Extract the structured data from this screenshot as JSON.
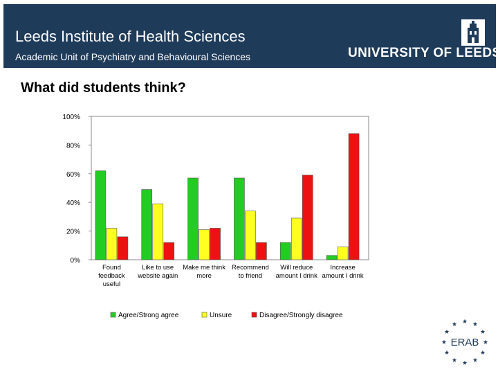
{
  "header": {
    "title": "Leeds Institute of Health Sciences",
    "subtitle": "Academic Unit of Psychiatry and Behavioural Sciences",
    "logo_text": "UNIVERSITY OF LEEDS"
  },
  "slide": {
    "heading": "What did students think?"
  },
  "footer_logo": {
    "text": "ERAB",
    "icon": "star-ring-logo"
  },
  "chart_data": {
    "type": "bar",
    "categories": [
      [
        "Found",
        "feedback",
        "useful"
      ],
      [
        "Like to use",
        "website again"
      ],
      [
        "Make me think",
        "more"
      ],
      [
        "Recommend",
        "to friend"
      ],
      [
        "Will reduce",
        "amount I drink"
      ],
      [
        "Increase",
        "amount I drink"
      ]
    ],
    "series": [
      {
        "name": "Agree/Strong agree",
        "color": "#22cc22",
        "values": [
          62,
          49,
          57,
          57,
          12,
          3
        ]
      },
      {
        "name": "Unsure",
        "color": "#ffff22",
        "values": [
          22,
          39,
          21,
          34,
          29,
          9
        ]
      },
      {
        "name": "Disagree/Strongly disagree",
        "color": "#ee1111",
        "values": [
          16,
          12,
          22,
          12,
          59,
          88
        ]
      }
    ],
    "ylim": [
      0,
      100
    ],
    "yticks": [
      "0%",
      "20%",
      "40%",
      "60%",
      "80%",
      "100%"
    ],
    "grid": false,
    "legend": "bottom"
  }
}
